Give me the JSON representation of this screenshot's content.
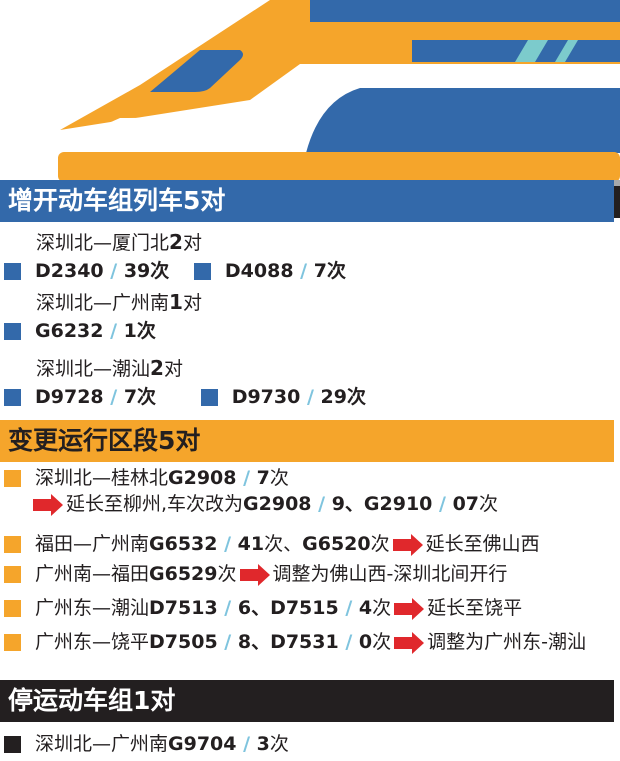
{
  "colors": {
    "blue": "#3369aa",
    "orange": "#f5a52b",
    "black": "#231f20",
    "slash": "#7fc4de",
    "arrow": "#e0282c"
  },
  "sections": [
    {
      "title": "增开动车组列车5对",
      "groups": [
        {
          "route": "深圳北—厦门北",
          "count": "2",
          "unit": "对",
          "trains": [
            {
              "code": "D2340",
              "num": "39次"
            },
            {
              "code": "D4088",
              "num": "7次"
            }
          ]
        },
        {
          "route": "深圳北—广州南",
          "count": "1",
          "unit": "对",
          "trains": [
            {
              "code": "G6232",
              "num": "1次"
            }
          ]
        },
        {
          "route": "深圳北—潮汕",
          "count": "2",
          "unit": "对",
          "trains": [
            {
              "code": "D9728",
              "num": "7次"
            },
            {
              "code": "D9730",
              "num": "29次"
            }
          ]
        }
      ]
    },
    {
      "title": "变更运行区段5对",
      "items": [
        {
          "a": "深圳北—桂林北",
          "b": "G2908",
          "c": "7",
          "d": "次"
        },
        {
          "e": "延长至柳州,车次改为",
          "f": "G2908",
          "g": "9、G2910",
          "h": "07",
          "i": "次"
        },
        {
          "a": "福田—广州南",
          "b": "G6532",
          "c": "41",
          "d": "次、",
          "b2": "G6520",
          "d2": "次",
          "e": "延长至佛山西"
        },
        {
          "a": "广州南—福田",
          "b": "G6529",
          "d": "次",
          "e": "调整为佛山西-深圳北间开行"
        },
        {
          "a": "广州东—潮汕",
          "b": "D7513",
          "c": "6、D7515",
          "c2": "4",
          "d": "次",
          "e": "延长至饶平"
        },
        {
          "a": "广州东—饶平",
          "b": "D7505",
          "c": "8、D7531",
          "c2": "0",
          "d": "次",
          "e": "调整为广州东-潮汕"
        }
      ]
    },
    {
      "title": "停运动车组1对",
      "items": [
        {
          "a": "深圳北—广州南",
          "b": "G9704",
          "c": "3",
          "d": "次"
        }
      ]
    }
  ]
}
